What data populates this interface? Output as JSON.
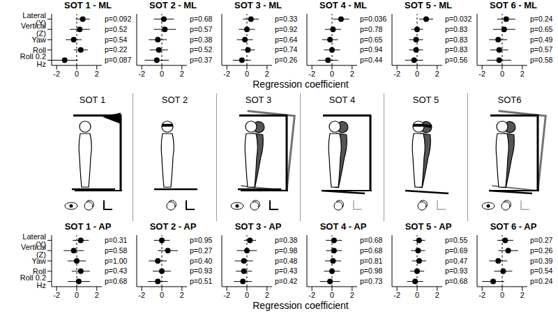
{
  "xlabel": "Regression coefficient",
  "conditions": [
    "SOT 1",
    "SOT 2",
    "SOT 3",
    "SOT 4",
    "SOT 5",
    "SOT6"
  ],
  "chart_data": [
    {
      "type": "scatter",
      "title": "SOT 1 - ML",
      "categories": [
        "Lateral (Y)",
        "Vertical (Z)",
        "Yaw",
        "Roll",
        "Roll 0.2 Hz"
      ],
      "values": [
        0.6,
        0.3,
        -0.3,
        0.4,
        -1.2
      ],
      "errors": [
        0.7,
        1.0,
        0.8,
        0.7,
        1.3
      ],
      "annotations": [
        "p=0.092",
        "p=0.52",
        "p=0.54",
        "p=0.22",
        "p=0.087"
      ],
      "xlim": [
        -2.5,
        2.5
      ],
      "xticks": [
        -2,
        0,
        2
      ],
      "reference_x": 0,
      "color": "#000000",
      "marker": "circle"
    },
    {
      "type": "scatter",
      "title": "SOT 2 - ML",
      "categories": [
        "Lateral (Y)",
        "Vertical (Z)",
        "Yaw",
        "Roll",
        "Roll 0.2 Hz"
      ],
      "values": [
        0.2,
        0.3,
        -0.4,
        -0.3,
        -0.5
      ],
      "errors": [
        1.0,
        1.1,
        0.9,
        0.9,
        1.2
      ],
      "annotations": [
        "p=0.68",
        "p=0.57",
        "p=0.38",
        "p=0.52",
        "p=0.37"
      ],
      "xlim": [
        -2.5,
        2.5
      ],
      "xticks": [
        -2,
        0,
        2
      ],
      "reference_x": 0,
      "color": "#000000",
      "marker": "circle",
      "tick_labels": "x"
    },
    {
      "type": "scatter",
      "title": "SOT 3 - ML",
      "categories": [
        "Lateral (Y)",
        "Vertical (Z)",
        "Yaw",
        "Roll",
        "Roll 0.2 Hz"
      ],
      "values": [
        0.4,
        0.0,
        -0.2,
        0.1,
        -0.5
      ],
      "errors": [
        0.8,
        0.8,
        0.8,
        0.7,
        0.9
      ],
      "annotations": [
        "p=0.33",
        "p=0.92",
        "p=0.64",
        "p=0.74",
        "p=0.26"
      ],
      "xlim": [
        -2.5,
        2.5
      ],
      "xticks": [
        -2,
        0,
        2
      ],
      "reference_x": 0,
      "color": "#000000",
      "marker": "circle",
      "tick_labels": "x"
    },
    {
      "type": "scatter",
      "title": "SOT 4 - ML",
      "categories": [
        "Lateral (Y)",
        "Vertical (Z)",
        "Yaw",
        "Roll",
        "Roll 0.2 Hz"
      ],
      "values": [
        0.9,
        0.1,
        -0.2,
        0.0,
        -0.4
      ],
      "errors": [
        0.8,
        0.8,
        0.8,
        0.8,
        1.0
      ],
      "annotations": [
        "p=0.036",
        "p=0.78",
        "p=0.65",
        "p=0.94",
        "p=0.44"
      ],
      "xlim": [
        -2.5,
        2.5
      ],
      "xticks": [
        -2,
        0,
        2
      ],
      "reference_x": 0,
      "color": "#000000",
      "marker": "circle",
      "tick_labels": "x"
    },
    {
      "type": "scatter",
      "title": "SOT 5 - ML",
      "categories": [
        "Lateral (Y)",
        "Vertical (Z)",
        "Yaw",
        "Roll",
        "Roll 0.2 Hz"
      ],
      "values": [
        0.9,
        0.0,
        -0.1,
        -0.1,
        -0.3
      ],
      "errors": [
        0.7,
        0.6,
        0.7,
        0.7,
        0.9
      ],
      "annotations": [
        "p=0.032",
        "p=0.83",
        "p=0.83",
        "p=0.83",
        "p=0.56"
      ],
      "xlim": [
        -2.5,
        2.5
      ],
      "xticks": [
        -2,
        0,
        2
      ],
      "reference_x": 0,
      "color": "#000000",
      "marker": "circle",
      "tick_labels": "x"
    },
    {
      "type": "scatter",
      "title": "SOT 6 - ML",
      "categories": [
        "Lateral (Y)",
        "Vertical (Z)",
        "Yaw",
        "Roll",
        "Roll 0.2 Hz"
      ],
      "values": [
        0.4,
        0.2,
        -0.4,
        -0.3,
        -0.3
      ],
      "errors": [
        0.9,
        1.1,
        0.9,
        0.9,
        1.2
      ],
      "annotations": [
        "p=0.24",
        "p=0.65",
        "p=0.49",
        "p=0.57",
        "p=0.58"
      ],
      "xlim": [
        -2.5,
        2.5
      ],
      "xticks": [
        -2,
        0,
        2
      ],
      "reference_x": 0,
      "color": "#000000",
      "marker": "circle",
      "tick_labels": "x"
    },
    {
      "type": "scatter",
      "title": "SOT 1 - AP",
      "categories": [
        "Lateral (Y)",
        "Vertical (Z)",
        "Yaw",
        "Roll",
        "Roll 0.2 Hz"
      ],
      "values": [
        0.4,
        -0.3,
        0.0,
        0.4,
        0.2
      ],
      "errors": [
        0.8,
        1.0,
        0.9,
        0.9,
        1.1
      ],
      "annotations": [
        "p=0.31",
        "p=0.58",
        "p=1.00",
        "p=0.43",
        "p=0.68"
      ],
      "xlim": [
        -2.5,
        2.5
      ],
      "xticks": [
        -2,
        0,
        2
      ],
      "reference_x": 0,
      "color": "#000000",
      "marker": "circle"
    },
    {
      "type": "scatter",
      "title": "SOT 2 - AP",
      "categories": [
        "Lateral (Y)",
        "Vertical (Z)",
        "Yaw",
        "Roll",
        "Roll 0.2 Hz"
      ],
      "values": [
        0.0,
        0.6,
        -0.4,
        0.0,
        -0.4
      ],
      "errors": [
        0.8,
        1.0,
        0.9,
        0.9,
        1.0
      ],
      "annotations": [
        "p=0.95",
        "p=0.27",
        "p=0.40",
        "p=0.93",
        "p=0.51"
      ],
      "xlim": [
        -2.5,
        2.5
      ],
      "xticks": [
        -2,
        0,
        2
      ],
      "reference_x": 0,
      "color": "#000000",
      "marker": "circle",
      "tick_labels": "x"
    },
    {
      "type": "scatter",
      "title": "SOT 3 - AP",
      "categories": [
        "Lateral (Y)",
        "Vertical (Z)",
        "Yaw",
        "Roll",
        "Roll 0.2 Hz"
      ],
      "values": [
        0.3,
        0.0,
        -0.3,
        -0.3,
        -0.4
      ],
      "errors": [
        0.6,
        1.0,
        0.9,
        0.8,
        0.9
      ],
      "annotations": [
        "p=0.38",
        "p=0.98",
        "p=0.48",
        "p=0.43",
        "p=0.42"
      ],
      "xlim": [
        -2.5,
        2.5
      ],
      "xticks": [
        -2,
        0,
        2
      ],
      "reference_x": 0,
      "color": "#000000",
      "marker": "circle",
      "tick_labels": "x"
    },
    {
      "type": "scatter",
      "title": "SOT 4 - AP",
      "categories": [
        "Lateral (Y)",
        "Vertical (Z)",
        "Yaw",
        "Roll",
        "Roll 0.2 Hz"
      ],
      "values": [
        0.2,
        0.2,
        0.1,
        0.0,
        -0.2
      ],
      "errors": [
        0.8,
        0.8,
        0.8,
        0.8,
        1.0
      ],
      "annotations": [
        "p=0.68",
        "p=0.68",
        "p=0.81",
        "p=0.98",
        "p=0.73"
      ],
      "xlim": [
        -2.5,
        2.5
      ],
      "xticks": [
        -2,
        0,
        2
      ],
      "reference_x": 0,
      "color": "#000000",
      "marker": "circle",
      "tick_labels": "x"
    },
    {
      "type": "scatter",
      "title": "SOT 5 - AP",
      "categories": [
        "Lateral (Y)",
        "Vertical (Z)",
        "Yaw",
        "Roll",
        "Roll 0.2 Hz"
      ],
      "values": [
        0.2,
        0.1,
        0.2,
        0.0,
        -0.2
      ],
      "errors": [
        0.6,
        0.7,
        0.7,
        0.7,
        0.8
      ],
      "annotations": [
        "p=0.55",
        "p=0.69",
        "p=0.47",
        "p=0.93",
        "p=0.68"
      ],
      "xlim": [
        -2.5,
        2.5
      ],
      "xticks": [
        -2,
        0,
        2
      ],
      "reference_x": 0,
      "color": "#000000",
      "marker": "circle",
      "tick_labels": "x"
    },
    {
      "type": "scatter",
      "title": "SOT 6 - AP",
      "categories": [
        "Lateral (Y)",
        "Vertical (Z)",
        "Yaw",
        "Roll",
        "Roll 0.2 Hz"
      ],
      "values": [
        0.3,
        0.6,
        -0.4,
        0.1,
        -0.9
      ],
      "errors": [
        0.8,
        1.0,
        0.9,
        0.9,
        1.1
      ],
      "annotations": [
        "p=0.27",
        "p=0.26",
        "p=0.39",
        "p=0.54",
        "p=0.24"
      ],
      "xlim": [
        -2.5,
        2.5
      ],
      "xticks": [
        -2,
        0,
        2
      ],
      "reference_x": 0,
      "color": "#000000",
      "marker": "circle",
      "tick_labels": "x"
    }
  ]
}
